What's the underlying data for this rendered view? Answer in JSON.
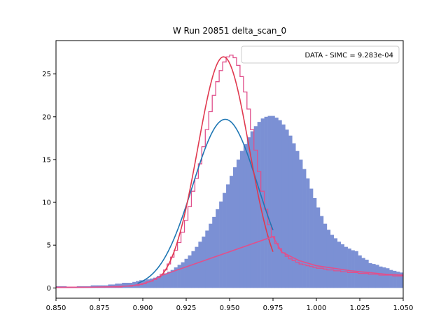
{
  "chart_data": {
    "type": "histogram",
    "title": "W Run 20851 delta_scan_0",
    "xlabel": "",
    "ylabel": "",
    "xlim": [
      0.85,
      1.05
    ],
    "ylim": [
      -1.2,
      28.9
    ],
    "xticks": [
      0.85,
      0.875,
      0.9,
      0.925,
      0.95,
      0.975,
      1.0,
      1.025,
      1.05
    ],
    "xtick_labels": [
      "0.850",
      "0.875",
      "0.900",
      "0.925",
      "0.950",
      "0.975",
      "1.000",
      "1.025",
      "1.050"
    ],
    "yticks": [
      0,
      5,
      10,
      15,
      20,
      25
    ],
    "ytick_labels": [
      "0",
      "5",
      "10",
      "15",
      "20",
      "25"
    ],
    "grid": false,
    "legend": {
      "location": "top-right",
      "entries": [
        "DATA - SIMC = 9.283e-04"
      ]
    },
    "colors": {
      "data_fill": "#7b90d4",
      "data_fit": "#1f77b4",
      "simc_hist": "#e0508c",
      "simc_fit": "#e0394f"
    },
    "bin_range": [
      0.85,
      1.05
    ],
    "bin_width": 0.002,
    "series": [
      {
        "style": "filled-histogram",
        "values": [
          0.2,
          0.2,
          0.2,
          0.1,
          0.1,
          0.1,
          0.2,
          0.2,
          0.2,
          0.2,
          0.3,
          0.3,
          0.3,
          0.3,
          0.3,
          0.4,
          0.4,
          0.5,
          0.5,
          0.6,
          0.6,
          0.6,
          0.7,
          0.8,
          0.9,
          0.9,
          1.0,
          1.1,
          1.2,
          1.4,
          1.5,
          1.7,
          1.9,
          2.1,
          2.4,
          2.7,
          3.0,
          3.4,
          3.8,
          4.3,
          4.8,
          5.4,
          6.0,
          6.7,
          7.5,
          8.3,
          9.2,
          10.1,
          11.1,
          12.1,
          13.1,
          14.1,
          15.0,
          16.0,
          16.8,
          17.6,
          18.3,
          18.9,
          19.4,
          19.8,
          20.0,
          20.1,
          20.1,
          19.9,
          19.6,
          19.1,
          18.5,
          17.8,
          16.9,
          16.0,
          15.0,
          13.9,
          12.8,
          11.6,
          10.5,
          9.4,
          8.4,
          7.5,
          6.8,
          6.2,
          5.8,
          5.4,
          5.1,
          4.8,
          4.6,
          4.4,
          4.3,
          3.8,
          3.5,
          3.3,
          2.9,
          2.8,
          2.7,
          2.5,
          2.4,
          2.3,
          2.1,
          2.0,
          1.9,
          1.8
        ]
      },
      {
        "style": "step-outline",
        "values": [
          0.1,
          0.1,
          0.1,
          0.1,
          0.1,
          0.1,
          0.1,
          0.1,
          0.1,
          0.1,
          0.1,
          0.1,
          0.1,
          0.1,
          0.1,
          0.1,
          0.1,
          0.1,
          0.1,
          0.2,
          0.2,
          0.2,
          0.3,
          0.3,
          0.4,
          0.5,
          0.7,
          0.8,
          1.0,
          1.2,
          1.6,
          2.1,
          2.8,
          3.6,
          4.4,
          5.3,
          6.5,
          7.9,
          9.5,
          11.3,
          12.8,
          14.5,
          16.5,
          18.5,
          20.6,
          22.5,
          24.1,
          25.4,
          26.4,
          27.0,
          27.2,
          26.9,
          26.0,
          24.7,
          22.9,
          20.9,
          18.5,
          16.1,
          13.6,
          11.3,
          9.2,
          7.4,
          6.0,
          5.2,
          4.6,
          4.1,
          3.7,
          3.4,
          3.2,
          3.0,
          2.8,
          2.7,
          2.6,
          2.5,
          2.4,
          2.3,
          2.3,
          2.2,
          2.1,
          2.1,
          2.0,
          2.0,
          1.9,
          1.9,
          1.8,
          1.8,
          1.8,
          1.7,
          1.7,
          1.7,
          1.6,
          1.6,
          1.6,
          1.5,
          1.5,
          1.5,
          1.5,
          1.4,
          1.4,
          1.4
        ]
      },
      {
        "style": "line",
        "fit": "gaussian",
        "amplitude": 19.7,
        "mean": 0.9475,
        "sigma": 0.0188,
        "x_range": [
          0.897,
          0.975
        ]
      },
      {
        "style": "line",
        "fit": "gaussian",
        "amplitude": 27.0,
        "mean": 0.9465,
        "sigma": 0.0148,
        "x_range": [
          0.91,
          0.975
        ]
      },
      {
        "style": "line",
        "x": [
          0.85,
          0.86,
          0.87,
          0.88,
          0.89,
          0.895,
          0.9,
          0.905,
          0.91,
          0.975,
          0.98,
          0.99,
          1.0,
          1.01,
          1.02,
          1.03,
          1.04,
          1.05
        ],
        "values": [
          0.05,
          0.06,
          0.08,
          0.12,
          0.2,
          0.3,
          0.5,
          0.8,
          1.4,
          6.0,
          4.2,
          3.2,
          2.6,
          2.3,
          2.0,
          1.8,
          1.6,
          1.5
        ]
      }
    ]
  }
}
